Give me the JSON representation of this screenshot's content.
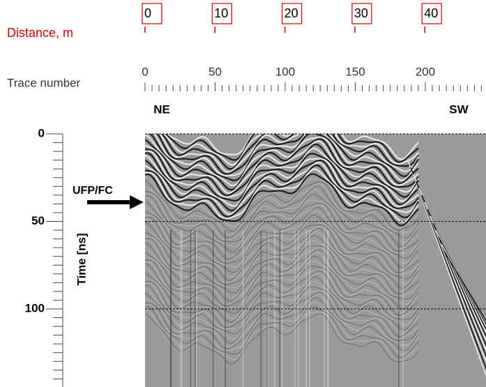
{
  "distance_axis": {
    "label": "Distance, m",
    "ticks": [
      0,
      10,
      20,
      30,
      40
    ]
  },
  "trace_axis": {
    "label": "Trace number",
    "ticks": [
      0,
      50,
      100,
      150,
      200
    ]
  },
  "directions": {
    "left": "NE",
    "right": "SW"
  },
  "time_axis": {
    "label": "Time [ns]",
    "ticks": [
      0,
      50,
      100
    ]
  },
  "annotation": "UFP/FC"
}
